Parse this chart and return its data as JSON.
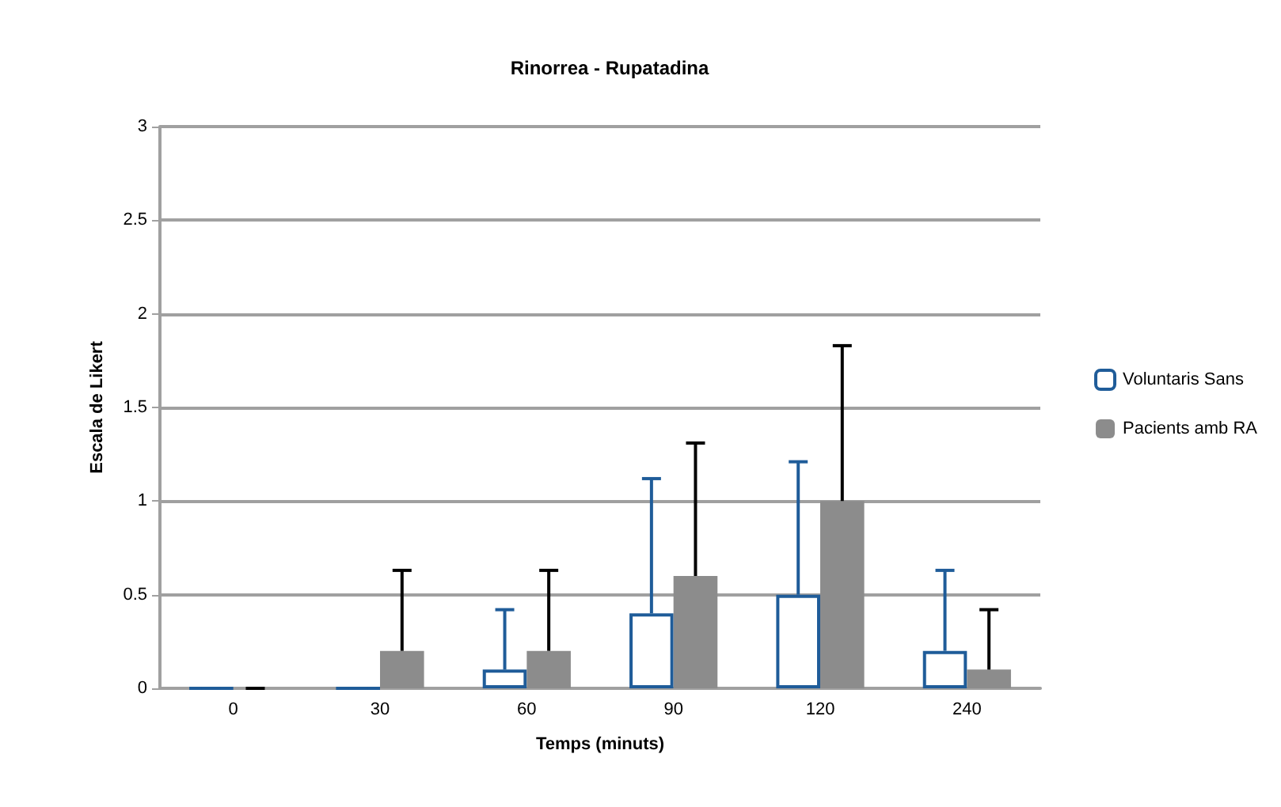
{
  "chart_data": {
    "type": "bar",
    "title": "Rinorrea - Rupatadina",
    "xlabel": "Temps (minuts)",
    "ylabel": "Escala de Likert",
    "categories": [
      "0",
      "30",
      "60",
      "90",
      "120",
      "240"
    ],
    "series": [
      {
        "name": "Voluntaris Sans",
        "color": "#1f5c99",
        "values": [
          0,
          0,
          0.1,
          0.4,
          0.5,
          0.2
        ],
        "errors": [
          [
            0,
            0
          ],
          [
            0,
            0
          ],
          [
            0.1,
            0.42
          ],
          [
            0.4,
            1.12
          ],
          [
            0.5,
            1.21
          ],
          [
            0.2,
            0.63
          ]
        ]
      },
      {
        "name": "Pacients amb RA",
        "color": "#8c8c8c",
        "values": [
          0,
          0.2,
          0.2,
          0.6,
          1.0,
          0.1
        ],
        "errors": [
          [
            0,
            0
          ],
          [
            0.2,
            0.63
          ],
          [
            0.2,
            0.63
          ],
          [
            0.6,
            1.31
          ],
          [
            1.0,
            1.83
          ],
          [
            0.1,
            0.42
          ]
        ]
      }
    ],
    "ylim": [
      0,
      3
    ],
    "yticks": [
      0,
      0.5,
      1,
      1.5,
      2,
      2.5,
      3
    ],
    "grid": "y",
    "legend": "right"
  }
}
